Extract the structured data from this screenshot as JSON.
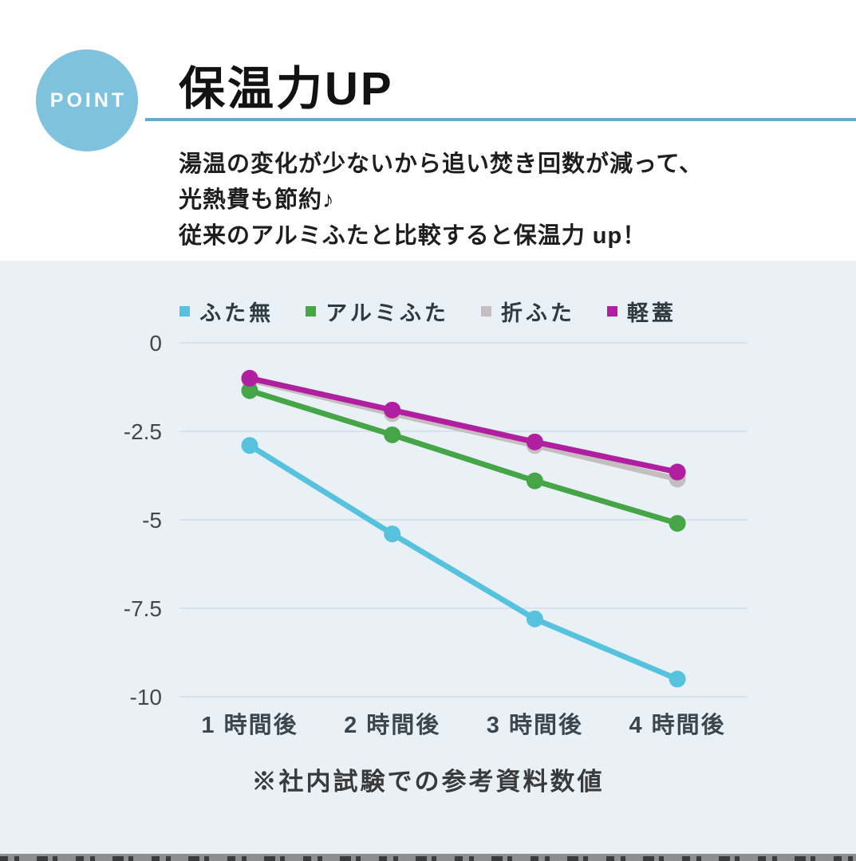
{
  "header": {
    "badge_label": "POINT",
    "title": "保温力UP",
    "description_lines": [
      "湯温の変化が少ないから追い焚き回数が減って、",
      "光熱費も節約♪",
      "従来のアルミふたと比較すると保温力 up！"
    ]
  },
  "colors": {
    "badge_blue": "#7fc2de",
    "underline_blue": "#63aacb",
    "section_bg": "#e9f1f7",
    "gridline": "#d9e2e9",
    "axis_text": "#474f55"
  },
  "chart_data": {
    "type": "line",
    "title": "",
    "xlabel": "",
    "ylabel": "",
    "categories": [
      "1 時間後",
      "2 時間後",
      "3 時間後",
      "4 時間後"
    ],
    "series": [
      {
        "name": "ふた無",
        "color": "#56c2de",
        "values": [
          -2.9,
          -5.4,
          -7.8,
          -9.5
        ]
      },
      {
        "name": "アルミふた",
        "color": "#46a546",
        "values": [
          -1.35,
          -2.6,
          -3.9,
          -5.1
        ]
      },
      {
        "name": "折ふた",
        "color": "#c4bebe",
        "values": [
          -1.05,
          -2.0,
          -2.9,
          -3.85
        ]
      },
      {
        "name": "軽蓋",
        "color": "#b01fa0",
        "values": [
          -1.0,
          -1.9,
          -2.8,
          -3.65
        ]
      }
    ],
    "yticks": [
      0,
      -2.5,
      -5,
      -7.5,
      -10
    ],
    "ylim": [
      -10,
      0
    ],
    "grid": true,
    "legend_position": "top",
    "z_order": [
      2,
      1,
      0,
      3
    ]
  },
  "footnote": "※社内試験での参考資料数値"
}
